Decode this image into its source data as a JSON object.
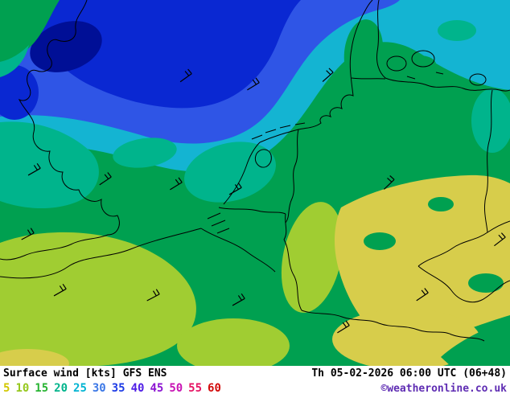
{
  "footer": {
    "product": "Surface wind",
    "unit": "[kts]",
    "model": "GFS ENS",
    "valid_time": "Th 05-02-2026 06:00 UTC (06+48)",
    "copyright": "©weatheronline.co.uk",
    "copyright_color": "#5f2db3"
  },
  "legend": {
    "values": [
      "5",
      "10",
      "15",
      "20",
      "25",
      "30",
      "35",
      "40",
      "45",
      "50",
      "55",
      "60"
    ],
    "colors": [
      "#d2c800",
      "#96c81e",
      "#28b432",
      "#00b48c",
      "#00b4d2",
      "#3c78e6",
      "#1e3ce6",
      "#501ee6",
      "#8c14d2",
      "#c814b4",
      "#e61464",
      "#d20a0a"
    ]
  },
  "map": {
    "palette": {
      "base_green": "#00a050",
      "teal": "#00b48c",
      "cyan": "#14b4d2",
      "blue": "#2f55e6",
      "dark_blue": "#0a28d2",
      "navy": "#000f96",
      "yellow_green": "#a0cd32",
      "yellow": "#d7cd4b",
      "coastline": "#000000"
    }
  }
}
